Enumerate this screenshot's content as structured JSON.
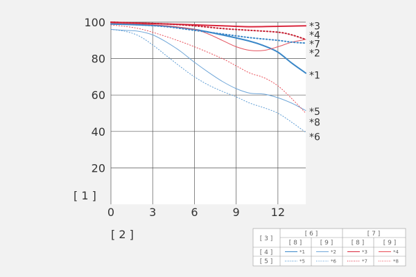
{
  "chart_data": {
    "type": "line",
    "xlabel": "[ 2 ]",
    "ylabel": "[ 1 ]",
    "xlim": [
      0,
      14
    ],
    "ylim": [
      0,
      100
    ],
    "x_ticks": [
      "0",
      "3",
      "6",
      "9",
      "12"
    ],
    "y_ticks": [
      "20",
      "40",
      "60",
      "80",
      "100"
    ],
    "grid": true,
    "series": [
      {
        "name": "*1",
        "color": "#3a87c8",
        "style": "solid",
        "width": 2.0,
        "points": [
          [
            0,
            99
          ],
          [
            2,
            98.5
          ],
          [
            4,
            97.8
          ],
          [
            6,
            96
          ],
          [
            8,
            93
          ],
          [
            10,
            89.5
          ],
          [
            11,
            87
          ],
          [
            12,
            83.5
          ],
          [
            13,
            77.5
          ],
          [
            14,
            72
          ]
        ]
      },
      {
        "name": "*2",
        "color": "#6fa6d8",
        "style": "solid",
        "width": 1.0,
        "points": [
          [
            0,
            96
          ],
          [
            1,
            95.5
          ],
          [
            2,
            95
          ],
          [
            3,
            93
          ],
          [
            4,
            89
          ],
          [
            5,
            84
          ],
          [
            6,
            78
          ],
          [
            7,
            72.5
          ],
          [
            8,
            67.5
          ],
          [
            9,
            63.5
          ],
          [
            10,
            61
          ],
          [
            11,
            60.5
          ],
          [
            12,
            58.5
          ],
          [
            13,
            55.5
          ],
          [
            14,
            51.5
          ]
        ]
      },
      {
        "name": "*3",
        "color": "#d9263c",
        "style": "solid",
        "width": 2.0,
        "points": [
          [
            0,
            100
          ],
          [
            2,
            99.5
          ],
          [
            4,
            99
          ],
          [
            6,
            98.5
          ],
          [
            8,
            98
          ],
          [
            10,
            97.5
          ],
          [
            12,
            97.7
          ],
          [
            14,
            98
          ]
        ]
      },
      {
        "name": "*4",
        "color": "#c51e30",
        "style": "dotted",
        "width": 2.0,
        "points": [
          [
            0,
            100
          ],
          [
            2,
            99.5
          ],
          [
            4,
            99
          ],
          [
            6,
            98
          ],
          [
            8,
            96.5
          ],
          [
            10,
            95.5
          ],
          [
            12,
            94.5
          ],
          [
            13,
            93
          ],
          [
            14,
            90.5
          ]
        ]
      },
      {
        "name": "*5",
        "color": "#e94a54",
        "style": "dotted",
        "width": 1.0,
        "points": [
          [
            0,
            98.5
          ],
          [
            2,
            96.5
          ],
          [
            4,
            92
          ],
          [
            6,
            86.5
          ],
          [
            8,
            80
          ],
          [
            9,
            76
          ],
          [
            10,
            72
          ],
          [
            11,
            69.5
          ],
          [
            12,
            65
          ],
          [
            13,
            58
          ],
          [
            14,
            50
          ]
        ]
      },
      {
        "name": "*6",
        "color": "#5a9ad3",
        "style": "dotted",
        "width": 1.0,
        "points": [
          [
            0,
            96
          ],
          [
            1,
            95
          ],
          [
            2,
            92.5
          ],
          [
            3,
            87.5
          ],
          [
            4,
            81.5
          ],
          [
            5,
            75.5
          ],
          [
            6,
            70
          ],
          [
            7,
            65.5
          ],
          [
            8,
            62
          ],
          [
            9,
            59
          ],
          [
            10,
            55.5
          ],
          [
            11,
            53
          ],
          [
            12,
            50
          ],
          [
            13,
            45
          ],
          [
            14,
            39.5
          ]
        ]
      },
      {
        "name": "*7",
        "color": "#e4515d",
        "style": "solid",
        "width": 1.0,
        "points": [
          [
            0,
            99.5
          ],
          [
            2,
            99
          ],
          [
            4,
            98
          ],
          [
            6,
            96
          ],
          [
            7,
            93.5
          ],
          [
            8,
            90
          ],
          [
            9,
            86.5
          ],
          [
            10,
            84.5
          ],
          [
            11,
            84.5
          ],
          [
            12,
            86.5
          ],
          [
            13,
            89
          ],
          [
            14,
            90.5
          ]
        ]
      },
      {
        "name": "*8",
        "color": "#3a87c8",
        "style": "dotted",
        "width": 2.0,
        "points": [
          [
            0,
            99
          ],
          [
            2,
            98.5
          ],
          [
            4,
            97.5
          ],
          [
            6,
            95.5
          ],
          [
            8,
            93.5
          ],
          [
            10,
            91.5
          ],
          [
            12,
            90
          ],
          [
            13,
            89
          ],
          [
            14,
            88.5
          ]
        ]
      }
    ]
  },
  "curve_labels": [
    {
      "text": "*3",
      "y": 98
    },
    {
      "text": "*4",
      "y": 93
    },
    {
      "text": "*7",
      "y": 88
    },
    {
      "text": "*2",
      "y": 83
    },
    {
      "text": "*1",
      "y": 71
    },
    {
      "text": "*5",
      "y": 51
    },
    {
      "text": "*8",
      "y": 45
    },
    {
      "text": "*6",
      "y": 37
    }
  ],
  "legend": {
    "corner_header": "[ 3 ]",
    "col_group_1": "[ 6 ]",
    "col_group_2": "[ 7 ]",
    "sub_headers": [
      "[ 8 ]",
      "[ 9 ]",
      "[ 8 ]",
      "[ 9 ]"
    ],
    "rows": [
      {
        "header": "[ 4 ]",
        "entries": [
          "*1",
          "*2",
          "*3",
          "*4"
        ]
      },
      {
        "header": "[ 5 ]",
        "entries": [
          "*5",
          "*6",
          "*7",
          "*8"
        ]
      }
    ],
    "swatch_colors": [
      [
        "#3a87c8",
        "#6fa6d8",
        "#d9263c",
        "#e94a54"
      ],
      [
        "#3a87c8",
        "#5a9ad3",
        "#d9263c",
        "#e94a54"
      ]
    ],
    "swatch_styles": [
      [
        "solid",
        "solid",
        "solid",
        "solid"
      ],
      [
        "dotted",
        "dotted",
        "dotted",
        "dotted"
      ]
    ]
  }
}
